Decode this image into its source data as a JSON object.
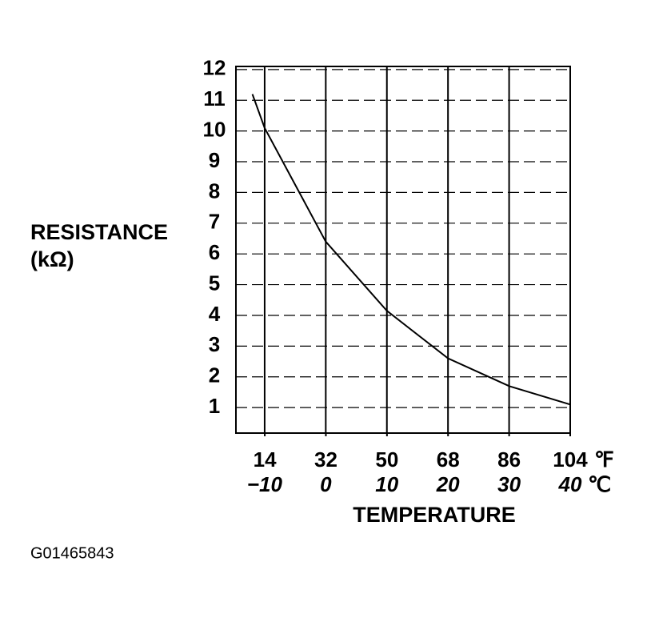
{
  "chart_data": {
    "type": "line",
    "y_label": "RESISTANCE",
    "y_unit": "(kΩ)",
    "x_label": "TEMPERATURE",
    "x": [
      -12,
      -10,
      0,
      10,
      20,
      30,
      40
    ],
    "values": [
      11.2,
      10.1,
      6.4,
      4.15,
      2.6,
      1.7,
      1.1
    ],
    "color": "#000000",
    "xlim": [
      -14.7,
      40
    ],
    "x_unit": "℃",
    "xticks": [
      {
        "value": -10,
        "label": "−10"
      },
      0,
      10,
      20,
      30,
      40
    ],
    "x2lim": [
      5.5,
      104
    ],
    "x2_unit": "℉",
    "x2ticks": [
      14,
      32,
      50,
      68,
      86,
      104
    ],
    "ylim": [
      0.17,
      12.1
    ],
    "yticks": [
      1,
      2,
      3,
      4,
      5,
      6,
      7,
      8,
      9,
      10,
      11,
      12
    ],
    "grid": true
  },
  "figure_code": "G01465843"
}
